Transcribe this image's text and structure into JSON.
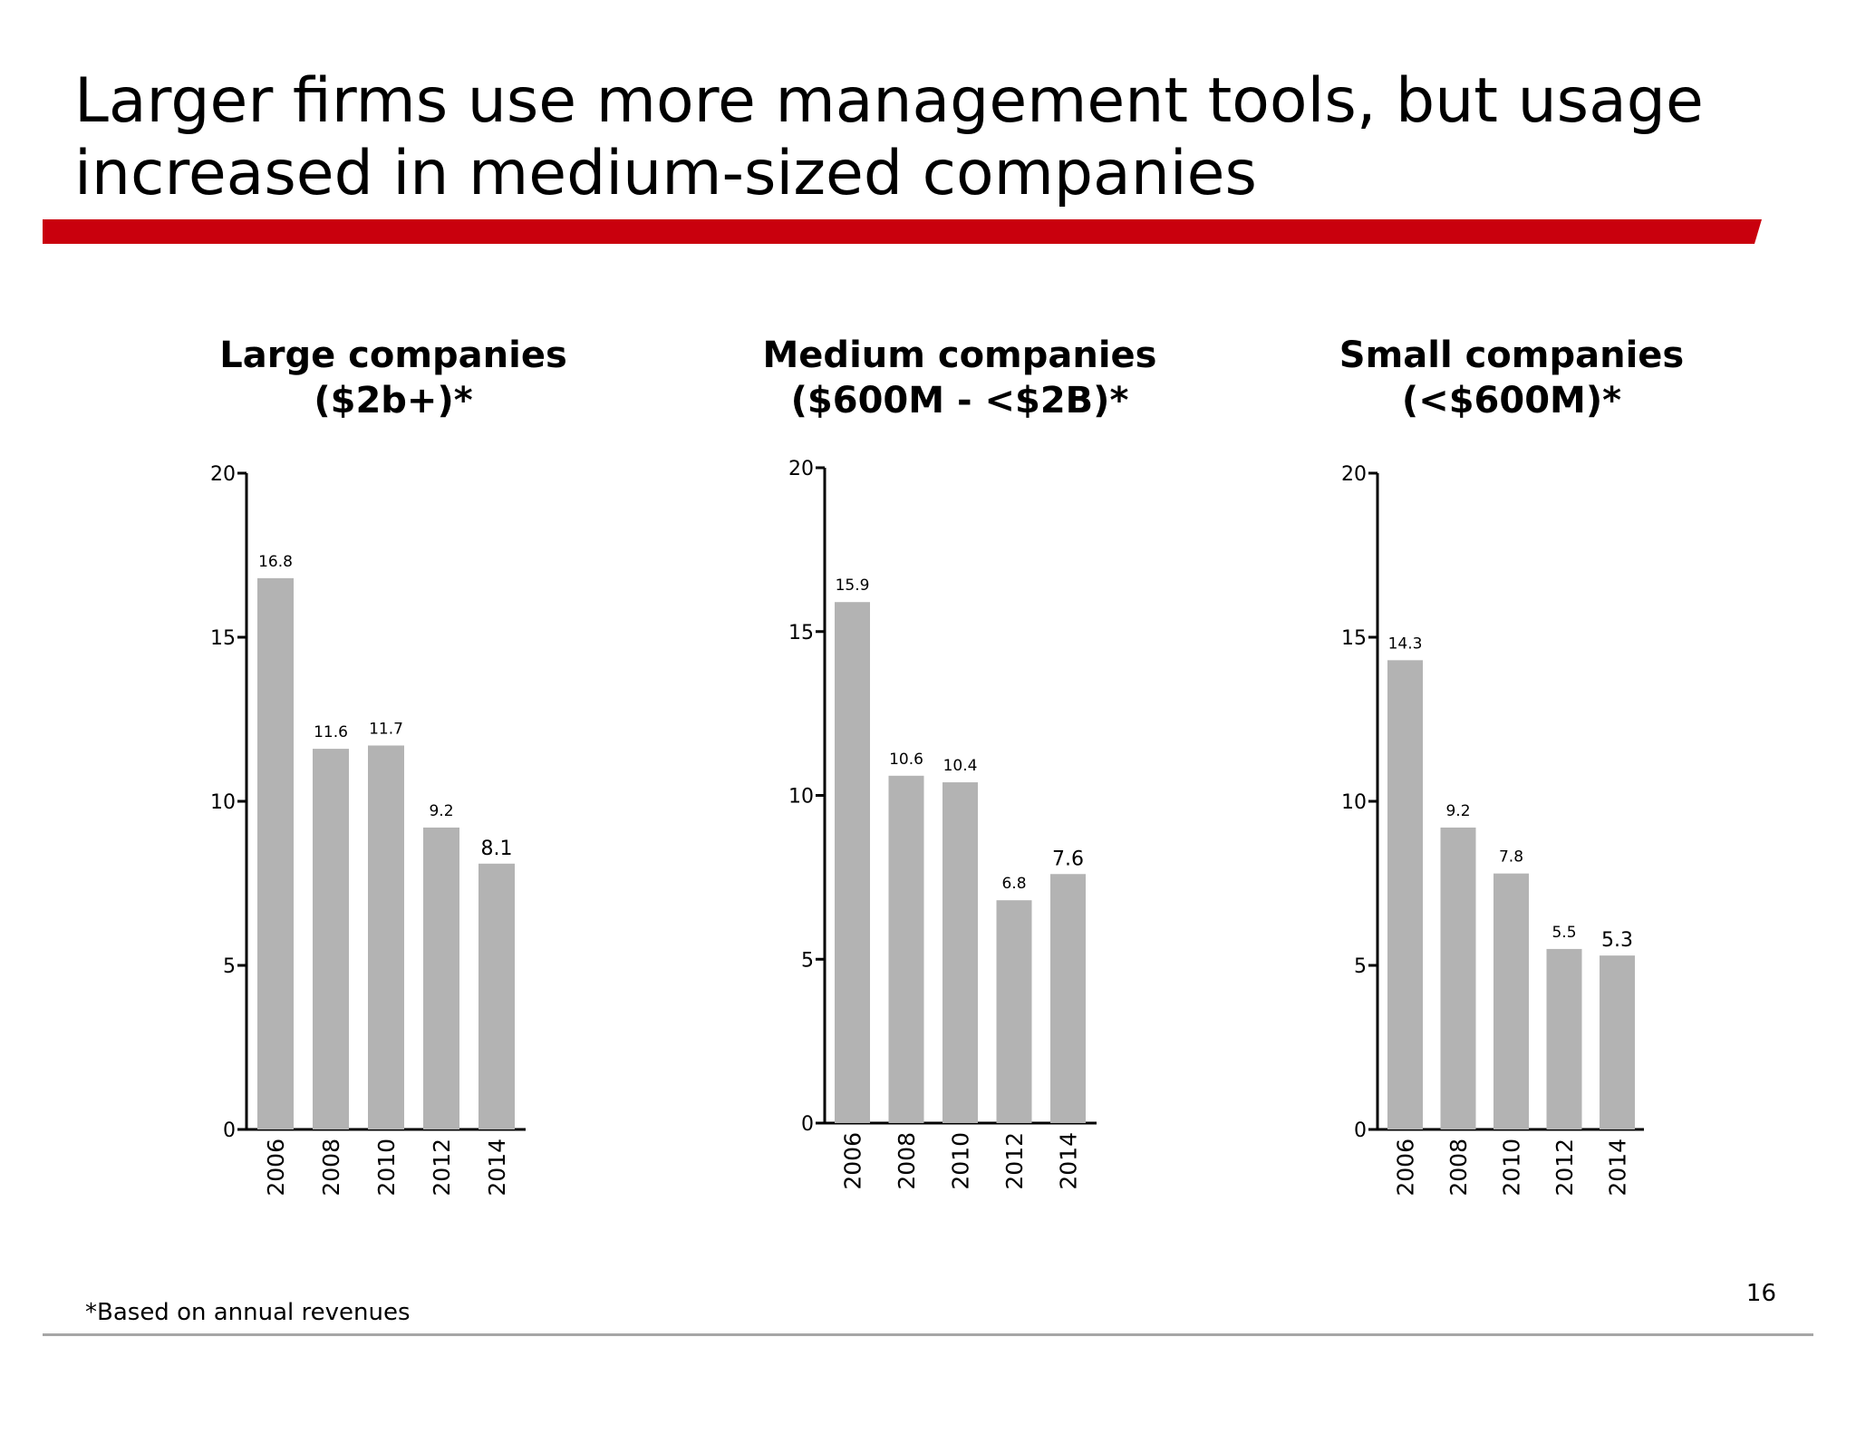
{
  "slide": {
    "title_line1": "Larger firms use more management tools, but usage",
    "title_line2": "increased in medium-sized companies",
    "footnote": "*Based on annual revenues",
    "page_number": "16",
    "accent_color": "#c9000d",
    "bar_color": "#b3b3b3"
  },
  "chart_data": [
    {
      "type": "bar",
      "title": "Large companies",
      "subtitle": "($2b+)*",
      "categories": [
        "2006",
        "2008",
        "2010",
        "2012",
        "2014"
      ],
      "values": [
        16.8,
        11.6,
        11.7,
        9.2,
        8.1
      ],
      "ylim": [
        0,
        20
      ],
      "yticks": [
        0,
        5,
        10,
        15,
        20
      ],
      "grid": false,
      "legend": "none"
    },
    {
      "type": "bar",
      "title": "Medium companies",
      "subtitle": "($600M - <$2B)*",
      "categories": [
        "2006",
        "2008",
        "2010",
        "2012",
        "2014"
      ],
      "values": [
        15.9,
        10.6,
        10.4,
        6.8,
        7.6
      ],
      "ylim": [
        0,
        20
      ],
      "yticks": [
        0,
        5,
        10,
        15,
        20
      ],
      "grid": false,
      "legend": "none"
    },
    {
      "type": "bar",
      "title": "Small companies",
      "subtitle": "(<$600M)*",
      "categories": [
        "2006",
        "2008",
        "2010",
        "2012",
        "2014"
      ],
      "values": [
        14.3,
        9.2,
        7.8,
        5.5,
        5.3
      ],
      "ylim": [
        0,
        20
      ],
      "yticks": [
        0,
        5,
        10,
        15,
        20
      ],
      "grid": false,
      "legend": "none"
    }
  ]
}
